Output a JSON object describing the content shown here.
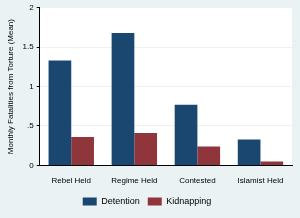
{
  "chart_data": {
    "type": "bar",
    "categories": [
      "Rebel Held",
      "Regime Held",
      "Contested",
      "Islamist Held"
    ],
    "series": [
      {
        "name": "Detention",
        "color": "#1a476f",
        "values": [
          1.33,
          1.68,
          0.77,
          0.33
        ]
      },
      {
        "name": "Kidnapping",
        "color": "#90353b",
        "values": [
          0.36,
          0.41,
          0.24,
          0.05
        ]
      }
    ],
    "y_label": "Monthly Fatalities from Torture (Mean)",
    "ylim": [
      0,
      2
    ],
    "yticks": [
      0,
      {
        "value": 0.5,
        "label": ".5"
      },
      1,
      1.5,
      2
    ],
    "grid": true,
    "legend": "bottom"
  }
}
